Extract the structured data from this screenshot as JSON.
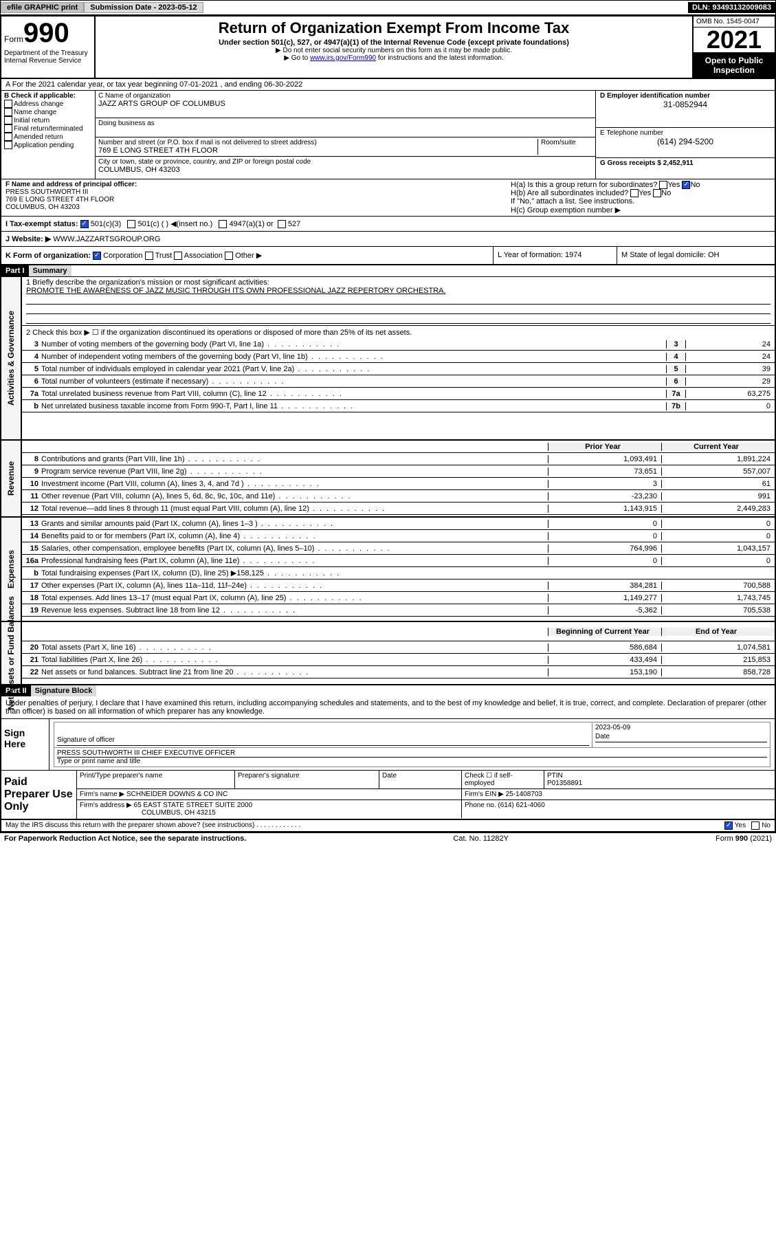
{
  "topbar": {
    "efile": "efile GRAPHIC print",
    "subm_label": "Submission Date - 2023-05-12",
    "dln": "DLN: 93493132009083"
  },
  "header": {
    "form": "Form",
    "num": "990",
    "title": "Return of Organization Exempt From Income Tax",
    "sub1": "Under section 501(c), 527, or 4947(a)(1) of the Internal Revenue Code (except private foundations)",
    "sub2": "▶ Do not enter social security numbers on this form as it may be made public.",
    "sub3_pre": "▶ Go to ",
    "sub3_link": "www.irs.gov/Form990",
    "sub3_post": " for instructions and the latest information.",
    "omb": "OMB No. 1545-0047",
    "year": "2021",
    "open": "Open to Public Inspection",
    "dept": "Department of the Treasury Internal Revenue Service"
  },
  "a": {
    "line": "A For the 2021 calendar year, or tax year beginning 07-01-2021   , and ending 06-30-2022"
  },
  "b": {
    "label": "B Check if applicable:",
    "opts": [
      "Address change",
      "Name change",
      "Initial return",
      "Final return/terminated",
      "Amended return",
      "Application pending"
    ]
  },
  "c": {
    "name_label": "C Name of organization",
    "name": "JAZZ ARTS GROUP OF COLUMBUS",
    "dba_label": "Doing business as",
    "dba": "",
    "street_label": "Number and street (or P.O. box if mail is not delivered to street address)",
    "room_label": "Room/suite",
    "street": "769 E LONG STREET 4TH FLOOR",
    "city_label": "City or town, state or province, country, and ZIP or foreign postal code",
    "city": "COLUMBUS, OH  43203"
  },
  "d": {
    "label": "D Employer identification number",
    "val": "31-0852944"
  },
  "e": {
    "label": "E Telephone number",
    "val": "(614) 294-5200"
  },
  "g": {
    "label": "G Gross receipts $ 2,452,911"
  },
  "f": {
    "label": "F Name and address of principal officer:",
    "name": "PRESS SOUTHWORTH III",
    "street": "769 E LONG STREET 4TH FLOOR",
    "city": "COLUMBUS, OH  43203"
  },
  "h": {
    "a": "H(a)  Is this a group return for subordinates?",
    "a_yes": "Yes",
    "a_no": "No",
    "b": "H(b)  Are all subordinates included?",
    "b_note": "If \"No,\" attach a list. See instructions.",
    "c": "H(c)  Group exemption number ▶"
  },
  "i": {
    "label": "I  Tax-exempt status:",
    "o1": "501(c)(3)",
    "o2": "501(c) (  ) ◀(insert no.)",
    "o3": "4947(a)(1) or",
    "o4": "527"
  },
  "j": {
    "label": "J  Website: ▶",
    "val": "WWW.JAZZARTSGROUP.ORG"
  },
  "k": {
    "label": "K Form of organization:",
    "o1": "Corporation",
    "o2": "Trust",
    "o3": "Association",
    "o4": "Other ▶",
    "l": "L Year of formation: 1974",
    "m": "M State of legal domicile: OH"
  },
  "part1": {
    "hdr": "Part I",
    "title": "Summary",
    "l1_label": "1  Briefly describe the organization's mission or most significant activities:",
    "l1_val": "PROMOTE THE AWARENESS OF JAZZ MUSIC THROUGH ITS OWN PROFESSIONAL JAZZ REPERTORY ORCHESTRA.",
    "l2": "2  Check this box ▶ ☐  if the organization discontinued its operations or disposed of more than 25% of its net assets.",
    "rows_a": [
      {
        "n": "3",
        "t": "Number of voting members of the governing body (Part VI, line 1a)",
        "c": "3",
        "v": "24"
      },
      {
        "n": "4",
        "t": "Number of independent voting members of the governing body (Part VI, line 1b)",
        "c": "4",
        "v": "24"
      },
      {
        "n": "5",
        "t": "Total number of individuals employed in calendar year 2021 (Part V, line 2a)",
        "c": "5",
        "v": "39"
      },
      {
        "n": "6",
        "t": "Total number of volunteers (estimate if necessary)",
        "c": "6",
        "v": "29"
      },
      {
        "n": "7a",
        "t": "Total unrelated business revenue from Part VIII, column (C), line 12",
        "c": "7a",
        "v": "63,275"
      },
      {
        "n": "b",
        "t": "Net unrelated business taxable income from Form 990-T, Part I, line 11",
        "c": "7b",
        "v": "0"
      }
    ],
    "hdr_prior": "Prior Year",
    "hdr_curr": "Current Year",
    "rows_r": [
      {
        "n": "8",
        "t": "Contributions and grants (Part VIII, line 1h)",
        "p": "1,093,491",
        "c": "1,891,224"
      },
      {
        "n": "9",
        "t": "Program service revenue (Part VIII, line 2g)",
        "p": "73,651",
        "c": "557,007"
      },
      {
        "n": "10",
        "t": "Investment income (Part VIII, column (A), lines 3, 4, and 7d )",
        "p": "3",
        "c": "61"
      },
      {
        "n": "11",
        "t": "Other revenue (Part VIII, column (A), lines 5, 6d, 8c, 9c, 10c, and 11e)",
        "p": "-23,230",
        "c": "991"
      },
      {
        "n": "12",
        "t": "Total revenue—add lines 8 through 11 (must equal Part VIII, column (A), line 12)",
        "p": "1,143,915",
        "c": "2,449,283"
      }
    ],
    "rows_e": [
      {
        "n": "13",
        "t": "Grants and similar amounts paid (Part IX, column (A), lines 1–3 )",
        "p": "0",
        "c": "0"
      },
      {
        "n": "14",
        "t": "Benefits paid to or for members (Part IX, column (A), line 4)",
        "p": "0",
        "c": "0"
      },
      {
        "n": "15",
        "t": "Salaries, other compensation, employee benefits (Part IX, column (A), lines 5–10)",
        "p": "764,996",
        "c": "1,043,157"
      },
      {
        "n": "16a",
        "t": "Professional fundraising fees (Part IX, column (A), line 11e)",
        "p": "0",
        "c": "0"
      },
      {
        "n": "b",
        "t": "Total fundraising expenses (Part IX, column (D), line 25) ▶158,125",
        "p": "",
        "c": "",
        "shade": true
      },
      {
        "n": "17",
        "t": "Other expenses (Part IX, column (A), lines 11a–11d, 11f–24e)",
        "p": "384,281",
        "c": "700,588"
      },
      {
        "n": "18",
        "t": "Total expenses. Add lines 13–17 (must equal Part IX, column (A), line 25)",
        "p": "1,149,277",
        "c": "1,743,745"
      },
      {
        "n": "19",
        "t": "Revenue less expenses. Subtract line 18 from line 12",
        "p": "-5,362",
        "c": "705,538"
      }
    ],
    "hdr_beg": "Beginning of Current Year",
    "hdr_end": "End of Year",
    "rows_n": [
      {
        "n": "20",
        "t": "Total assets (Part X, line 16)",
        "p": "586,684",
        "c": "1,074,581"
      },
      {
        "n": "21",
        "t": "Total liabilities (Part X, line 26)",
        "p": "433,494",
        "c": "215,853"
      },
      {
        "n": "22",
        "t": "Net assets or fund balances. Subtract line 21 from line 20",
        "p": "153,190",
        "c": "858,728"
      }
    ],
    "vtabs": {
      "a": "Activities & Governance",
      "r": "Revenue",
      "e": "Expenses",
      "n": "Net Assets or Fund Balances"
    }
  },
  "part2": {
    "hdr": "Part II",
    "title": "Signature Block",
    "declare": "Under penalties of perjury, I declare that I have examined this return, including accompanying schedules and statements, and to the best of my knowledge and belief, it is true, correct, and complete. Declaration of preparer (other than officer) is based on all information of which preparer has any knowledge.",
    "sign_here": "Sign Here",
    "sig_officer": "Signature of officer",
    "sig_date": "Date",
    "sig_date_val": "2023-05-09",
    "sig_name": "PRESS SOUTHWORTH III  CHIEF EXECUTIVE OFFICER",
    "sig_name_label": "Type or print name and title",
    "paid": "Paid Preparer Use Only",
    "p_name": "Print/Type preparer's name",
    "p_sig": "Preparer's signature",
    "p_date": "Date",
    "p_check": "Check ☐ if self-employed",
    "p_ptin_l": "PTIN",
    "p_ptin": "P01358891",
    "firm_name_l": "Firm's name    ▶",
    "firm_name": "SCHNEIDER DOWNS & CO INC",
    "firm_ein_l": "Firm's EIN ▶",
    "firm_ein": "25-1408703",
    "firm_addr_l": "Firm's address ▶",
    "firm_addr": "65 EAST STATE STREET SUITE 2000",
    "firm_city": "COLUMBUS, OH  43215",
    "phone_l": "Phone no.",
    "phone": "(614) 621-4060",
    "may": "May the IRS discuss this return with the preparer shown above? (see instructions)",
    "yes": "Yes",
    "no": "No"
  },
  "footer": {
    "pra": "For Paperwork Reduction Act Notice, see the separate instructions.",
    "cat": "Cat. No. 11282Y",
    "form": "Form 990 (2021)"
  }
}
